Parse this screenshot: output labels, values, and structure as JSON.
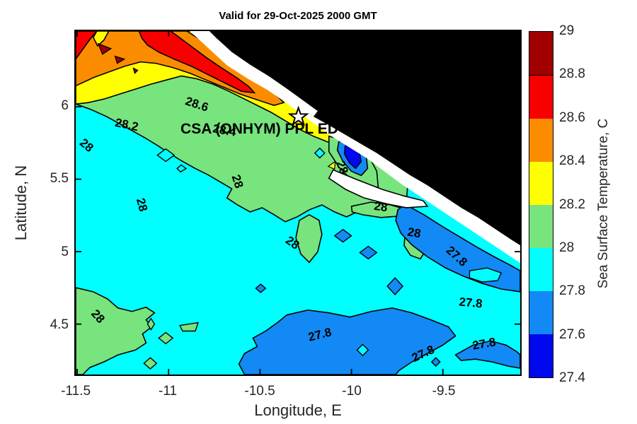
{
  "figure": {
    "background": "#FFFFFF",
    "axis_color": "#000000",
    "tick_label_color": "#262626"
  },
  "chart_data": {
    "type": "heatmap",
    "subtype": "filled-contour-map",
    "title": "Valid for 29-Oct-2025 2000 GMT",
    "xlabel": "Longitude, E",
    "ylabel": "Latitude, N",
    "xlim": [
      -11.508,
      -9.077
    ],
    "ylim": [
      4.152,
      6.522
    ],
    "x_ticks": [
      {
        "v": -11.5,
        "label": "-11.5"
      },
      {
        "v": -11,
        "label": "-11"
      },
      {
        "v": -10.5,
        "label": "-10.5"
      },
      {
        "v": -10,
        "label": "-10"
      },
      {
        "v": -9.5,
        "label": "-9.5"
      }
    ],
    "y_ticks": [
      {
        "v": 6,
        "label": "6"
      },
      {
        "v": 5.5,
        "label": "5.5"
      },
      {
        "v": 5,
        "label": "5"
      },
      {
        "v": 4.5,
        "label": "4.5"
      }
    ],
    "grid": false,
    "colorbar": {
      "label": "Sea Surface Temperature, C",
      "range": [
        27.4,
        29
      ],
      "tick_labels": [
        "29",
        "28.8",
        "28.6",
        "28.4",
        "28.2",
        "28",
        "27.8",
        "27.6",
        "27.4"
      ],
      "tick_values": [
        29,
        28.8,
        28.6,
        28.4,
        28.2,
        28,
        27.8,
        27.6,
        27.4
      ],
      "levels": [
        27.4,
        27.6,
        27.8,
        28,
        28.2,
        28.4,
        28.6,
        28.8,
        29
      ],
      "level_colors_bottom_to_top": [
        "#0008EE",
        "#1289F5",
        "#00FFFF",
        "#78E47E",
        "#FFFF00",
        "#FB8C00",
        "#F90000",
        "#A00000"
      ]
    },
    "contour_labels": [
      {
        "text": "28.6",
        "lon": -10.85,
        "lat": 6.02,
        "rot": 18
      },
      {
        "text": "28.2",
        "lon": -11.23,
        "lat": 5.88,
        "rot": 12
      },
      {
        "text": "28",
        "lon": -11.45,
        "lat": 5.74,
        "rot": 40
      },
      {
        "text": "28.4",
        "lon": -10.7,
        "lat": 5.84,
        "rot": 10
      },
      {
        "text": "28",
        "lon": -11.15,
        "lat": 5.33,
        "rot": 75
      },
      {
        "text": "28",
        "lon": -10.63,
        "lat": 5.49,
        "rot": 72
      },
      {
        "text": "28",
        "lon": -10.33,
        "lat": 5.07,
        "rot": 35
      },
      {
        "text": "28",
        "lon": -10.06,
        "lat": 5.59,
        "rot": 68
      },
      {
        "text": "28",
        "lon": -9.85,
        "lat": 5.32,
        "rot": 8
      },
      {
        "text": "28",
        "lon": -9.67,
        "lat": 5.14,
        "rot": 10
      },
      {
        "text": "27.8",
        "lon": -9.44,
        "lat": 4.98,
        "rot": 42
      },
      {
        "text": "27.8",
        "lon": -9.36,
        "lat": 4.66,
        "rot": 5
      },
      {
        "text": "27.8",
        "lon": -10.18,
        "lat": 4.44,
        "rot": -14
      },
      {
        "text": "27.8",
        "lon": -9.62,
        "lat": 4.31,
        "rot": -25
      },
      {
        "text": "27.8",
        "lon": -9.29,
        "lat": 4.38,
        "rot": -10
      },
      {
        "text": "28",
        "lon": -11.39,
        "lat": 4.57,
        "rot": 48
      }
    ],
    "annotation": {
      "text": "CSA (ONHYM) PPL ED",
      "lon": -10.51,
      "lat": 5.85
    },
    "star_marker": {
      "lon": -10.29,
      "lat": 5.93
    }
  },
  "colors": {
    "land": "#000000",
    "coastal_gap": "#FFFFFF"
  }
}
